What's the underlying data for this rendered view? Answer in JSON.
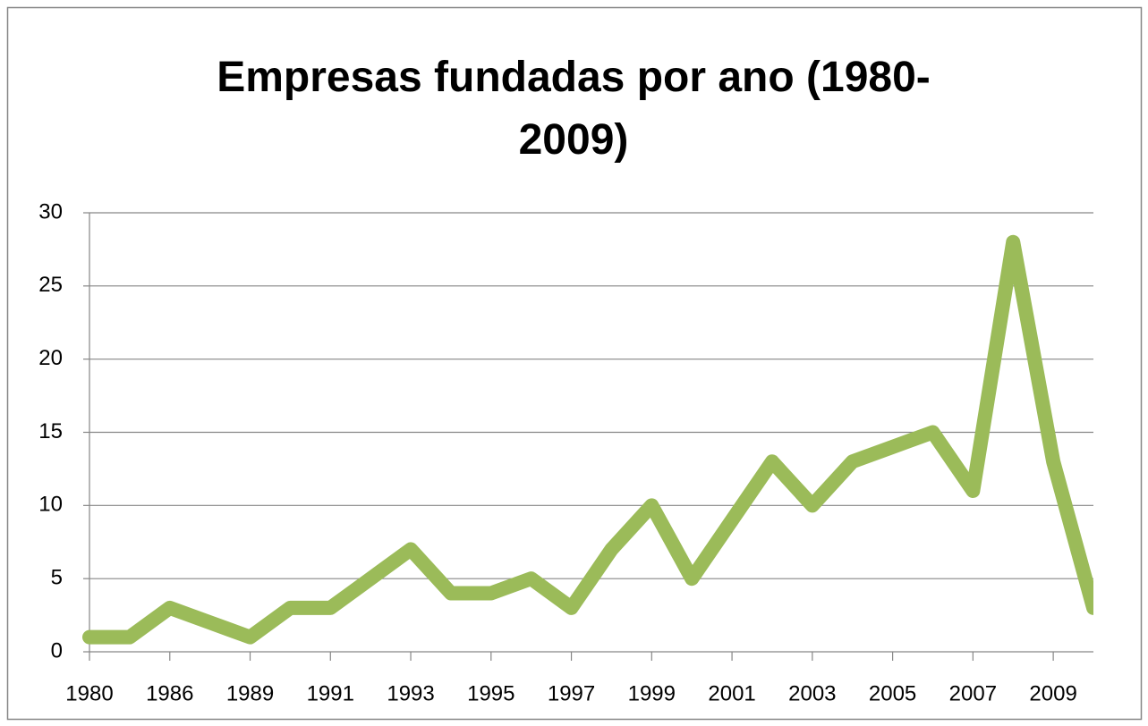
{
  "chart_data": {
    "type": "line",
    "title": "Empresas fundadas por ano (1980-2009)",
    "categories": [
      "1980",
      null,
      "1986",
      null,
      "1989",
      null,
      "1991",
      null,
      "1993",
      null,
      "1995",
      null,
      "1997",
      null,
      "1999",
      null,
      "2001",
      null,
      "2003",
      null,
      "2005",
      null,
      "2007",
      null,
      "2009",
      null
    ],
    "series": [
      {
        "color": "#9bbb59",
        "values": [
          1,
          1,
          3,
          2,
          1,
          3,
          3,
          5,
          7,
          4,
          4,
          5,
          3,
          7,
          10,
          5,
          9,
          13,
          10,
          13,
          14,
          15,
          11,
          28,
          13,
          3
        ]
      }
    ],
    "ylim": [
      0,
      30
    ],
    "yticks": [
      0,
      5,
      10,
      15,
      20,
      25,
      30
    ],
    "grid": true
  }
}
